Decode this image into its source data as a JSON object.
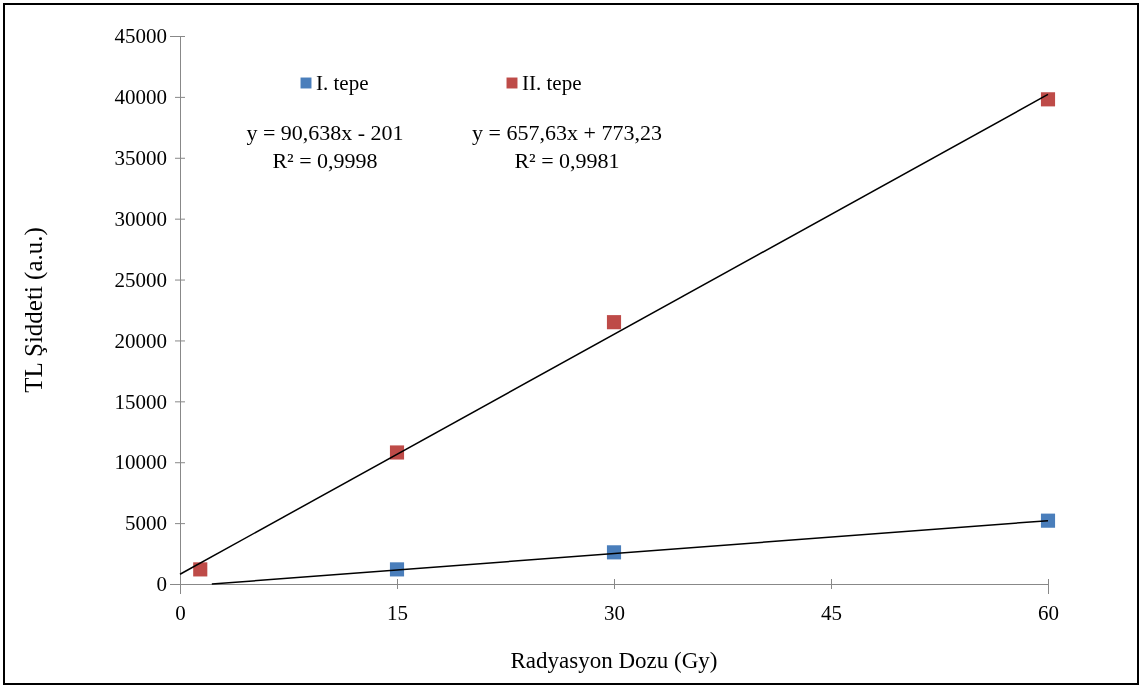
{
  "chart_data": {
    "type": "scatter",
    "xlabel": "Radyasyon Dozu (Gy)",
    "ylabel": "TL Şiddeti (a.u.)",
    "xlim": [
      0,
      60
    ],
    "xticks": [
      0,
      15,
      30,
      45,
      60
    ],
    "ylim": [
      0,
      45000
    ],
    "yticks": [
      0,
      5000,
      10000,
      15000,
      20000,
      25000,
      30000,
      35000,
      40000,
      45000
    ],
    "legend": "top left",
    "grid": false,
    "series": [
      {
        "name": "I. tepe",
        "color": "#4a7ebb",
        "marker": "square",
        "x": [
          15,
          30,
          60
        ],
        "values": [
          1200,
          2600,
          5200
        ]
      },
      {
        "name": "II. tepe",
        "color": "#be4b48",
        "marker": "square",
        "x": [
          1.4,
          15,
          30,
          60
        ],
        "values": [
          1200,
          10800,
          21500,
          39800
        ]
      },
      {
        "type": "line",
        "color": "#000000",
        "marker": "none",
        "x": [
          2.2,
          60
        ],
        "values": [
          0,
          5200
        ]
      },
      {
        "type": "line",
        "color": "#000000",
        "marker": "none",
        "x": [
          0,
          60
        ],
        "values": [
          800,
          40200
        ]
      }
    ],
    "annotations": [
      "y = 90,638x - 201\nR² = 0,9998",
      "y = 657,63x + 773,23\nR² = 0,9981"
    ]
  }
}
